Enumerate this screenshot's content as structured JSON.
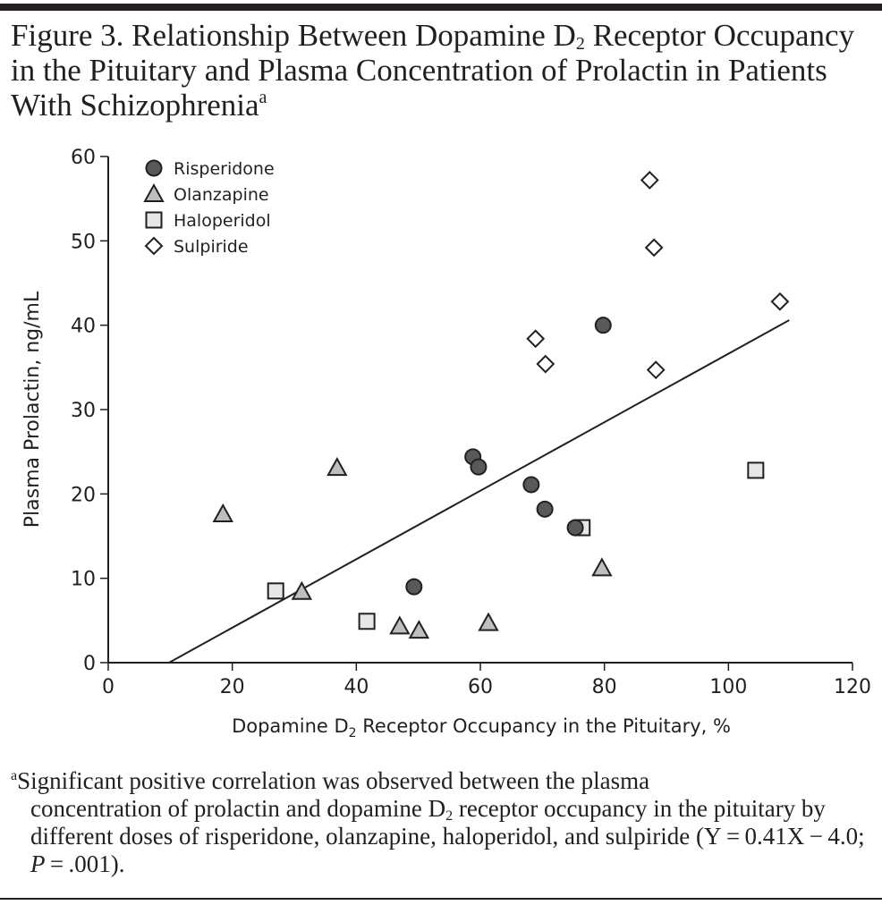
{
  "figure": {
    "title_part1": "Figure 3. Relationship Between Dopamine D",
    "title_sub": "2",
    "title_part2": " Receptor Occupancy in the Pituitary and Plasma Concentration of Prolactin in Patients With Schizophrenia",
    "title_sup": "a",
    "footnote_marker": "a",
    "footnote_line1": "Significant positive correlation was observed between the plasma",
    "footnote_rest_part1": "concentration of prolactin and dopamine D",
    "footnote_rest_sub": "2",
    "footnote_rest_part2": " receptor occupancy in the pituitary by different doses of risperidone, olanzapine, haloperidol, and sulpiride (Y = 0.41X − 4.0; ",
    "footnote_p": "P",
    "footnote_rest_part3": " = .001)."
  },
  "chart_data": {
    "type": "scatter",
    "title": "Relationship Between Dopamine D2 Receptor Occupancy in the Pituitary and Plasma Concentration of Prolactin in Patients With Schizophrenia",
    "xlabel_part1": "Dopamine D",
    "xlabel_sub": "2",
    "xlabel_part2": " Receptor Occupancy in the Pituitary, %",
    "ylabel": "Plasma Prolactin, ng/mL",
    "xlim": [
      0,
      120
    ],
    "ylim": [
      0,
      60
    ],
    "xticks": [
      0,
      20,
      40,
      60,
      80,
      100,
      120
    ],
    "yticks": [
      0,
      10,
      20,
      30,
      40,
      50,
      60
    ],
    "grid": false,
    "legend_position": "top-left",
    "series": [
      {
        "name": "Risperidone",
        "marker": "circle",
        "fill": "#58595b",
        "points": [
          [
            49.3,
            9.0
          ],
          [
            58.8,
            24.4
          ],
          [
            59.7,
            23.2
          ],
          [
            68.2,
            21.1
          ],
          [
            70.4,
            18.2
          ],
          [
            75.3,
            16.0
          ],
          [
            79.8,
            40.0
          ]
        ]
      },
      {
        "name": "Olanzapine",
        "marker": "triangle",
        "fill": "#bcbec0",
        "points": [
          [
            18.5,
            17.6
          ],
          [
            31.2,
            8.4
          ],
          [
            36.9,
            23.1
          ],
          [
            47.0,
            4.3
          ],
          [
            50.1,
            3.8
          ],
          [
            61.3,
            4.7
          ],
          [
            79.6,
            11.2
          ]
        ]
      },
      {
        "name": "Haloperidol",
        "marker": "square",
        "fill": "#e6e7e8",
        "points": [
          [
            27.0,
            8.5
          ],
          [
            41.7,
            4.9
          ],
          [
            76.4,
            16.0
          ],
          [
            104.4,
            22.8
          ]
        ]
      },
      {
        "name": "Sulpiride",
        "marker": "diamond",
        "fill": "#ffffff",
        "points": [
          [
            68.9,
            38.4
          ],
          [
            70.5,
            35.4
          ],
          [
            87.3,
            57.2
          ],
          [
            88.0,
            49.2
          ],
          [
            88.3,
            34.7
          ],
          [
            108.3,
            42.8
          ]
        ]
      }
    ],
    "regression": {
      "equation": "Y = 0.41X - 4.0",
      "p_value": ".001",
      "from": [
        9.8,
        0
      ],
      "to": [
        109.8,
        40.6
      ]
    }
  }
}
